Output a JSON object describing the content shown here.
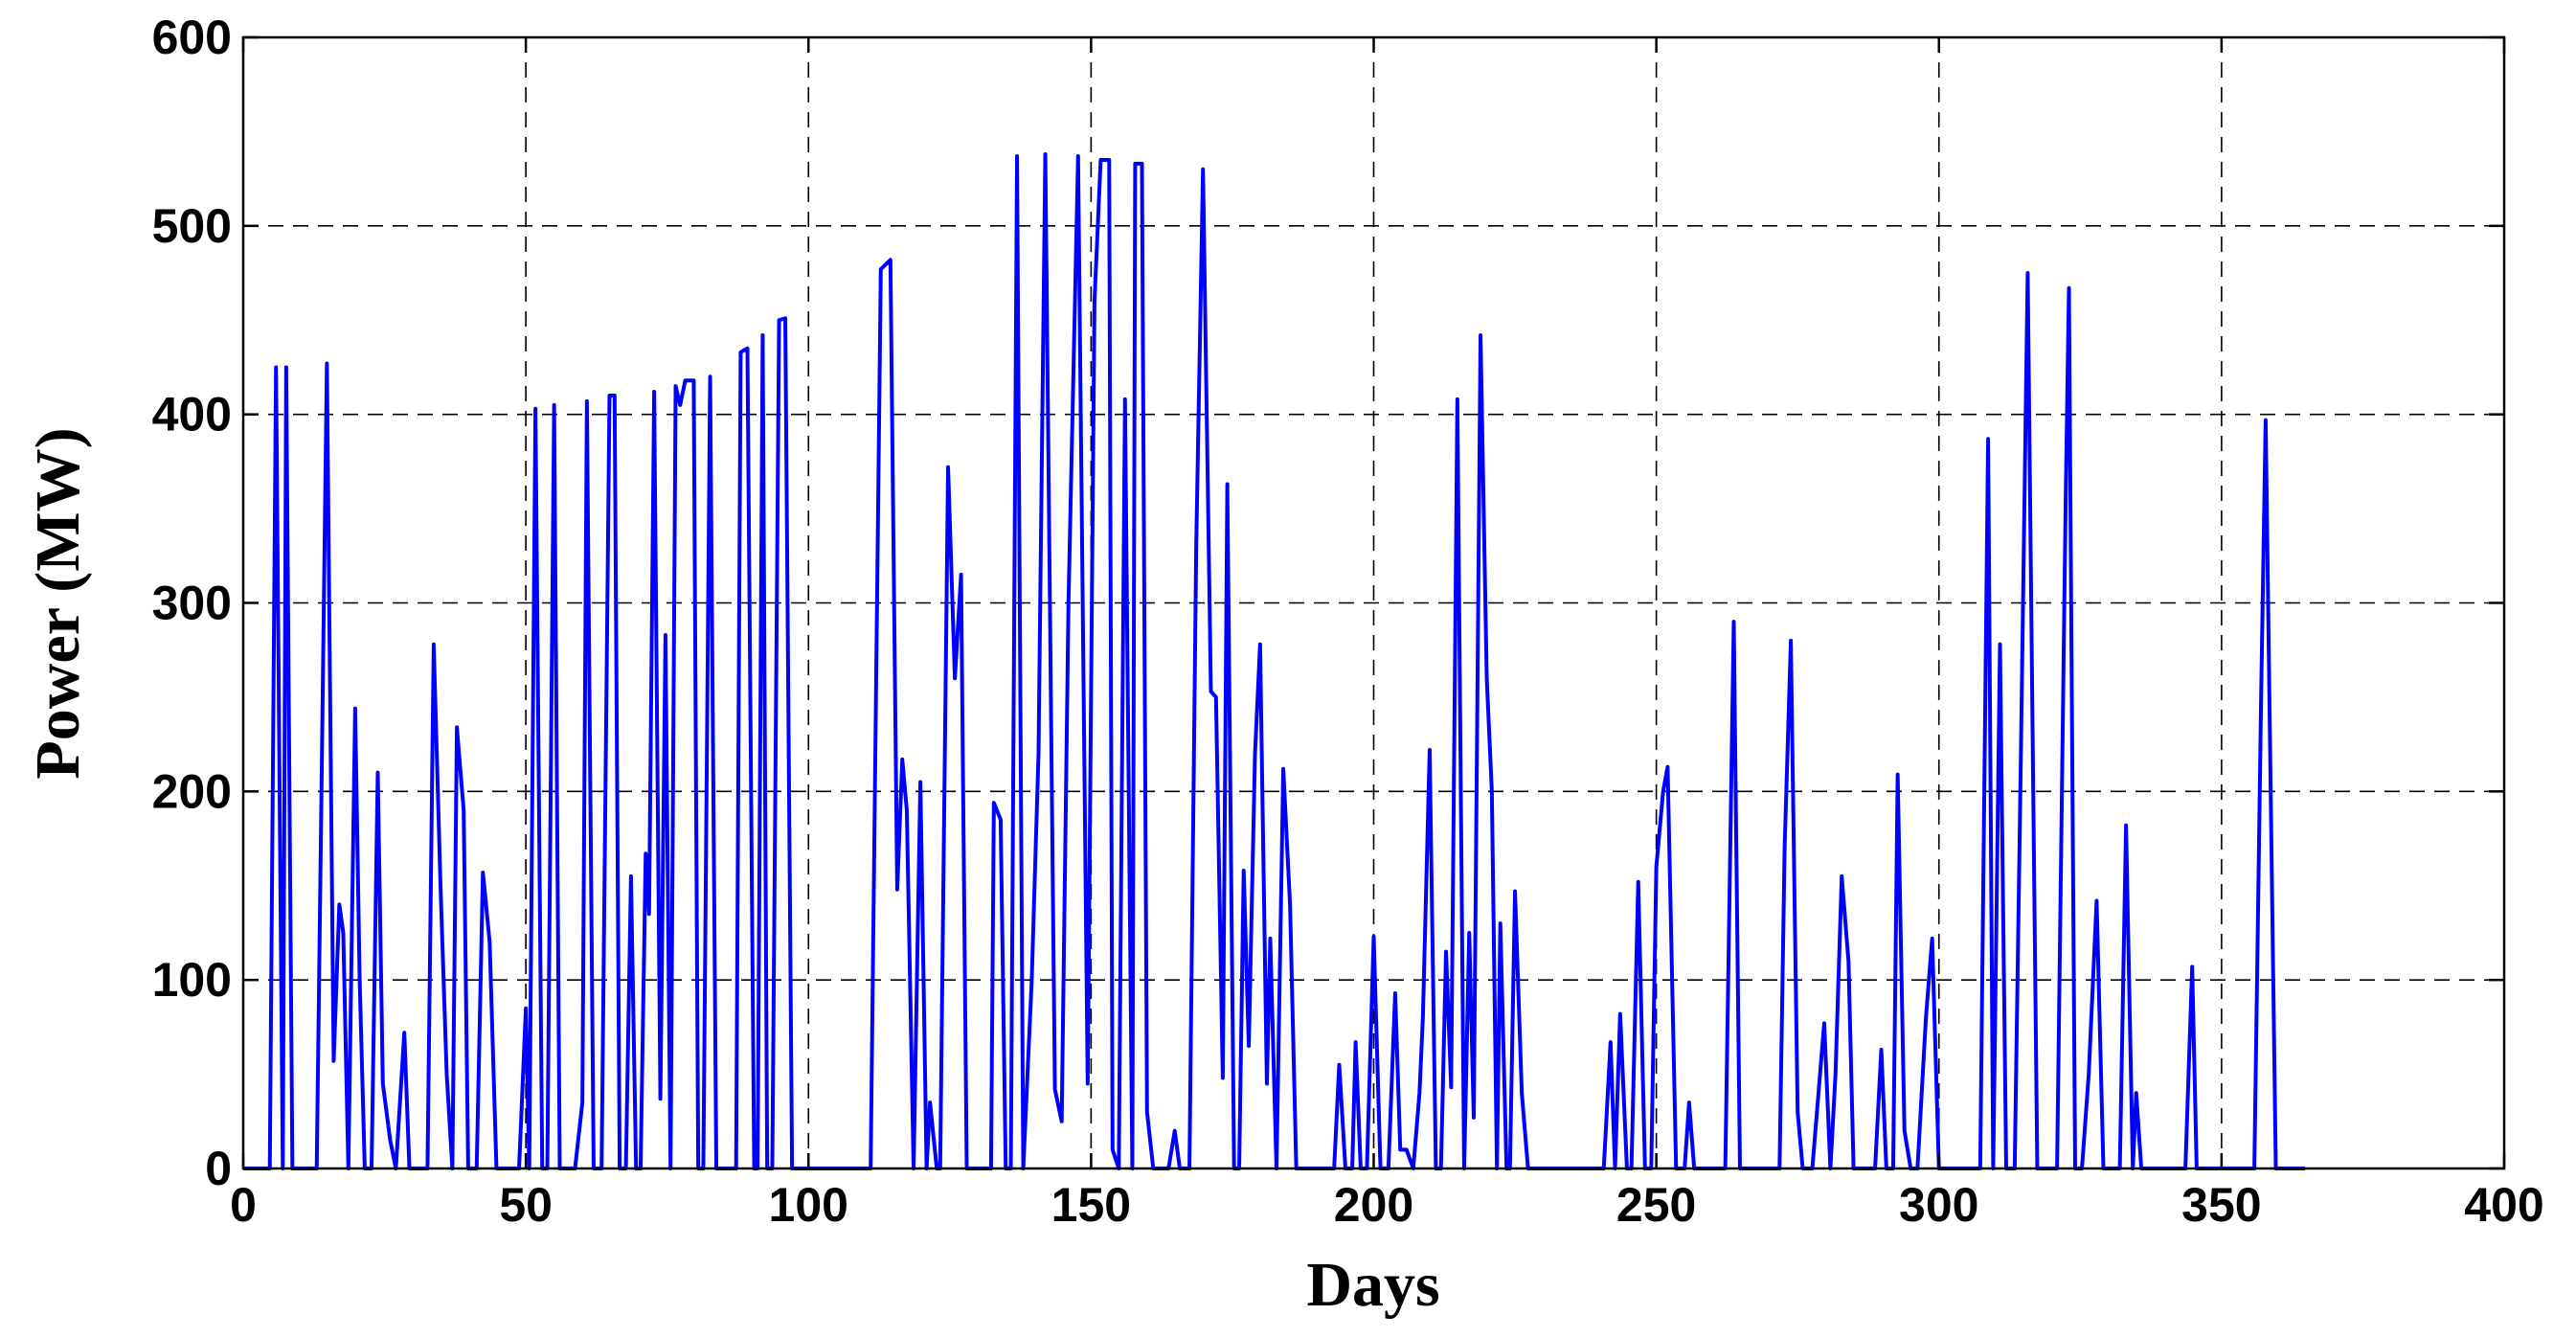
{
  "chart_data": {
    "type": "line",
    "x_label": "Days",
    "y_label": "Power (MW)",
    "color": "#0000ff",
    "grid": true,
    "xlim": [
      0,
      400
    ],
    "xticks": [
      0,
      50,
      100,
      150,
      200,
      250,
      300,
      350,
      400
    ],
    "ylim": [
      0,
      600
    ],
    "yticks": [
      0,
      100,
      200,
      300,
      400,
      500,
      600
    ],
    "x": [
      0,
      4.7,
      5.8,
      7,
      7.6,
      8.7,
      13,
      14.8,
      16,
      17,
      17.7,
      18.6,
      19.8,
      20.6,
      21.5,
      22.7,
      23.8,
      24.7,
      26,
      27,
      28.5,
      29.4,
      32.6,
      33.7,
      34.9,
      36,
      37,
      37.8,
      39,
      39.8,
      41.3,
      42.4,
      43.6,
      44.8,
      48.8,
      50,
      50.6,
      51.7,
      52.9,
      53.8,
      55,
      56,
      58.7,
      60,
      60.8,
      62,
      63.4,
      64.8,
      65.7,
      66.6,
      67.7,
      68.6,
      69.5,
      70.3,
      71.2,
      71.8,
      72.7,
      73.8,
      74.7,
      75.6,
      76.5,
      77.3,
      78.2,
      79.7,
      80.5,
      81.4,
      82.6,
      83.7,
      87.2,
      88,
      89.2,
      90.4,
      91,
      91.9,
      92.7,
      93.6,
      94.8,
      95.9,
      97.1,
      98.3,
      111,
      112.8,
      114.5,
      115.7,
      116.6,
      117.4,
      118.6,
      119.8,
      120.9,
      121.5,
      122.7,
      123.3,
      124.7,
      125.9,
      127,
      128,
      132.3,
      132.8,
      134,
      134.9,
      135.8,
      136.9,
      138,
      139.5,
      140.7,
      141.9,
      143.6,
      144.8,
      146,
      147.7,
      149.4,
      150.6,
      151.7,
      153.2,
      153.8,
      154.9,
      156,
      157.3,
      157.8,
      159,
      159.9,
      161,
      163.7,
      164.8,
      165.7,
      167.4,
      168.6,
      169.8,
      171.2,
      172.1,
      173.3,
      174.1,
      175.3,
      176.2,
      177,
      177.9,
      179,
      179.9,
      181.1,
      181.7,
      182.8,
      184,
      185.2,
      186.3,
      193,
      193.9,
      195,
      196.2,
      196.8,
      197.7,
      198.8,
      200,
      201.2,
      202.6,
      203.8,
      204.7,
      205.8,
      207,
      208.1,
      208.7,
      209.9,
      211,
      211.9,
      212.8,
      213.7,
      214.8,
      216,
      216.9,
      217.7,
      218.9,
      220,
      220.9,
      221.8,
      222.4,
      223.5,
      224.1,
      225,
      226.2,
      227.3,
      240.7,
      241.9,
      242.7,
      243.6,
      244.8,
      245.6,
      246.8,
      248,
      249.1,
      250,
      251.2,
      252,
      253.5,
      255,
      255.8,
      256.7,
      262.2,
      263.7,
      264.8,
      271.8,
      272.7,
      273.8,
      275,
      275.9,
      277.6,
      279.7,
      280.8,
      281.7,
      282.8,
      284,
      284.9,
      288.7,
      289.8,
      290.7,
      291.9,
      292.7,
      293.9,
      295,
      296.2,
      297.7,
      298.8,
      300,
      307.3,
      308.7,
      309.6,
      310.8,
      311.9,
      313.4,
      314.5,
      315.7,
      317.4,
      320.9,
      322.4,
      323,
      324.1,
      325.3,
      326.5,
      327.9,
      329.1,
      332,
      333.1,
      334.3,
      334.9,
      335.8,
      343.6,
      344.8,
      345.6,
      355.8,
      357,
      357.8,
      359.6,
      364.8
    ],
    "values": [
      0,
      0,
      425,
      0,
      425,
      0,
      0,
      427,
      57,
      140,
      125,
      0,
      244,
      100,
      0,
      0,
      210,
      45,
      15,
      0,
      72,
      0,
      0,
      278,
      150,
      50,
      0,
      234,
      190,
      0,
      0,
      157,
      120,
      0,
      0,
      85,
      0,
      403,
      0,
      0,
      405,
      0,
      0,
      35,
      407,
      0,
      0,
      410,
      410,
      0,
      0,
      155,
      0,
      0,
      167,
      135,
      412,
      37,
      283,
      0,
      415,
      405,
      418,
      418,
      0,
      0,
      420,
      0,
      0,
      433,
      435,
      0,
      0,
      442,
      0,
      0,
      450,
      451,
      0,
      0,
      0,
      477,
      482,
      148,
      217,
      190,
      0,
      205,
      0,
      35,
      0,
      0,
      372,
      260,
      315,
      0,
      0,
      194,
      185,
      0,
      0,
      537,
      0,
      100,
      220,
      538,
      42,
      25,
      300,
      537,
      45,
      460,
      535,
      535,
      10,
      0,
      408,
      0,
      533,
      533,
      30,
      0,
      0,
      20,
      0,
      0,
      330,
      530,
      253,
      250,
      48,
      363,
      0,
      0,
      158,
      65,
      220,
      278,
      45,
      122,
      0,
      212,
      140,
      0,
      0,
      55,
      0,
      0,
      67,
      0,
      0,
      123,
      0,
      0,
      93,
      10,
      10,
      0,
      40,
      80,
      222,
      0,
      0,
      115,
      43,
      408,
      0,
      125,
      27,
      442,
      260,
      200,
      0,
      130,
      0,
      0,
      147,
      40,
      0,
      0,
      67,
      0,
      82,
      0,
      0,
      152,
      0,
      0,
      160,
      200,
      213,
      0,
      0,
      35,
      0,
      0,
      290,
      0,
      0,
      170,
      280,
      30,
      0,
      0,
      77,
      0,
      50,
      155,
      110,
      0,
      0,
      63,
      0,
      0,
      209,
      20,
      0,
      0,
      80,
      122,
      0,
      0,
      387,
      0,
      278,
      0,
      0,
      220,
      475,
      0,
      0,
      350,
      467,
      0,
      0,
      50,
      142,
      0,
      0,
      182,
      0,
      40,
      0,
      0,
      107,
      0,
      0,
      250,
      397,
      0,
      0
    ]
  }
}
